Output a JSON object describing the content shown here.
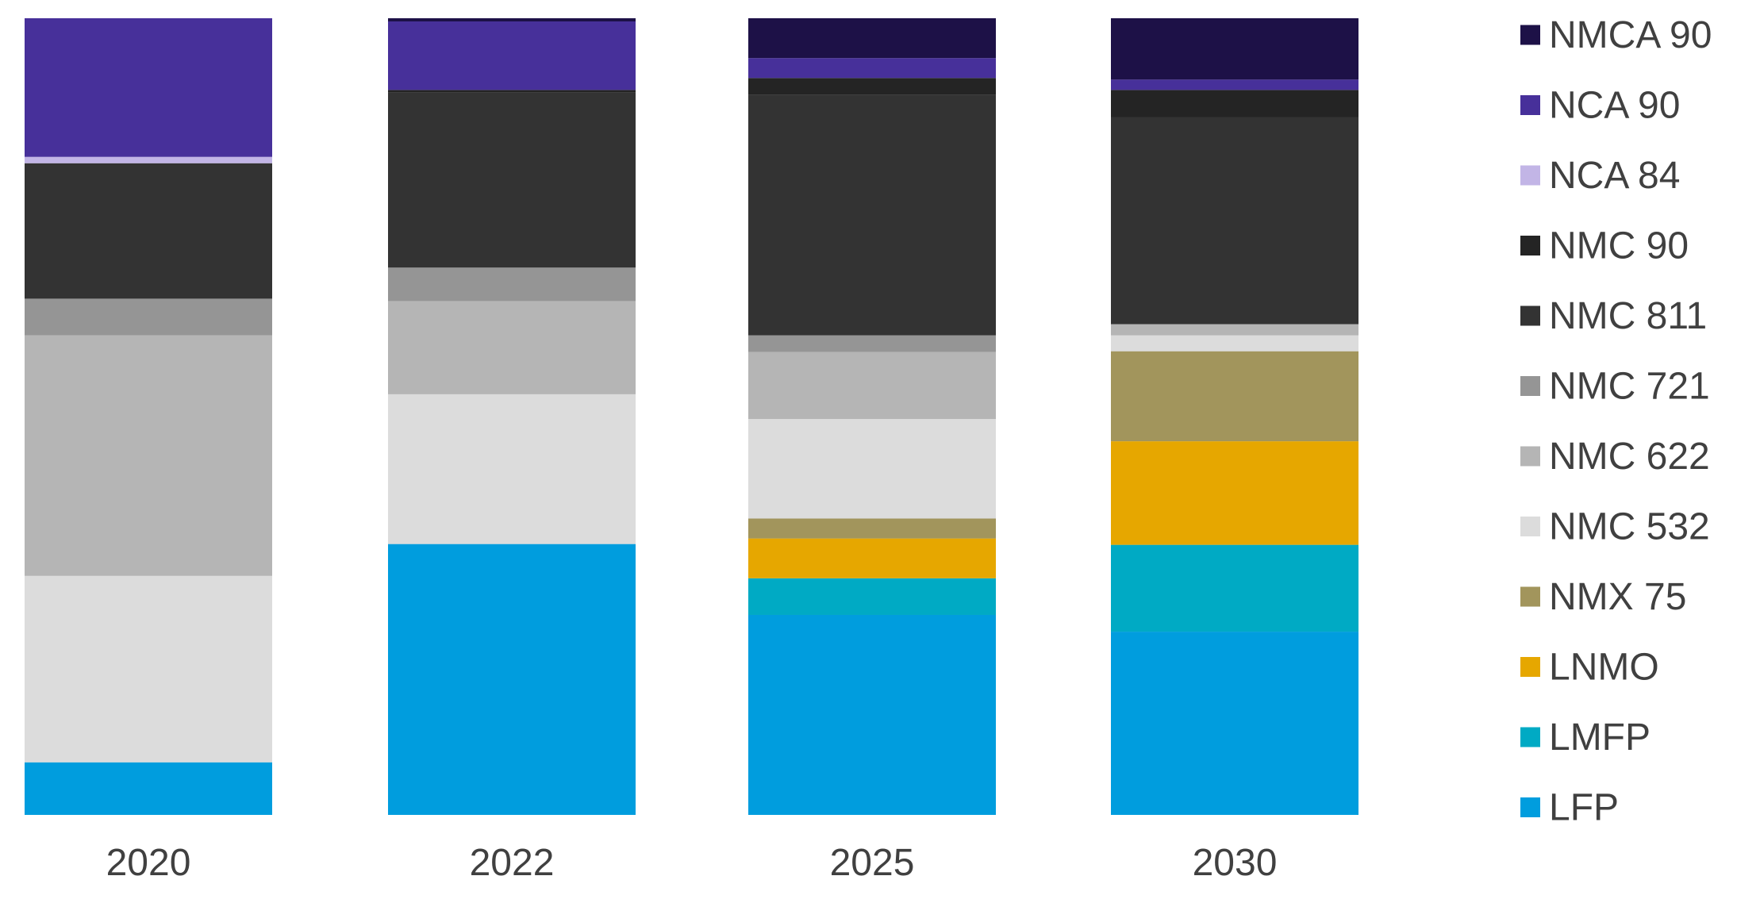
{
  "chart_data": {
    "type": "bar",
    "stacked": true,
    "normalized": true,
    "title": "",
    "xlabel": "",
    "ylabel": "",
    "ylim": [
      0,
      100
    ],
    "grid": false,
    "legend_position": "right",
    "categories": [
      "2020",
      "2022",
      "2025",
      "2030"
    ],
    "series": [
      {
        "name": "LFP",
        "color": "#009DDE",
        "values": [
          6.6,
          34.0,
          25.1,
          23.0
        ]
      },
      {
        "name": "LMFP",
        "color": "#00AAC4",
        "values": [
          0.0,
          0.0,
          4.6,
          10.9
        ]
      },
      {
        "name": "LNMO",
        "color": "#E6A700",
        "values": [
          0.0,
          0.0,
          5.0,
          13.0
        ]
      },
      {
        "name": "NMX 75",
        "color": "#A2955C",
        "values": [
          0.0,
          0.0,
          2.5,
          11.3
        ]
      },
      {
        "name": "NMC 532",
        "color": "#DCDCDC",
        "values": [
          23.4,
          18.8,
          12.5,
          2.0
        ]
      },
      {
        "name": "NMC 622",
        "color": "#B5B5B5",
        "values": [
          30.2,
          11.7,
          8.4,
          1.4
        ]
      },
      {
        "name": "NMC 721",
        "color": "#959595",
        "values": [
          4.6,
          4.2,
          2.1,
          0.0
        ]
      },
      {
        "name": "NMC 811",
        "color": "#333333",
        "values": [
          17.0,
          22.0,
          30.2,
          26.0
        ]
      },
      {
        "name": "NMC 90",
        "color": "#242424",
        "values": [
          0.0,
          0.3,
          2.1,
          3.4
        ]
      },
      {
        "name": "NCA 84",
        "color": "#C2B5E6",
        "values": [
          0.8,
          0.0,
          0.0,
          0.0
        ]
      },
      {
        "name": "NCA 90",
        "color": "#47309A",
        "values": [
          17.4,
          8.6,
          2.5,
          1.3
        ]
      },
      {
        "name": "NMCA 90",
        "color": "#1D1147",
        "values": [
          0.0,
          0.4,
          5.0,
          7.7
        ]
      }
    ]
  }
}
